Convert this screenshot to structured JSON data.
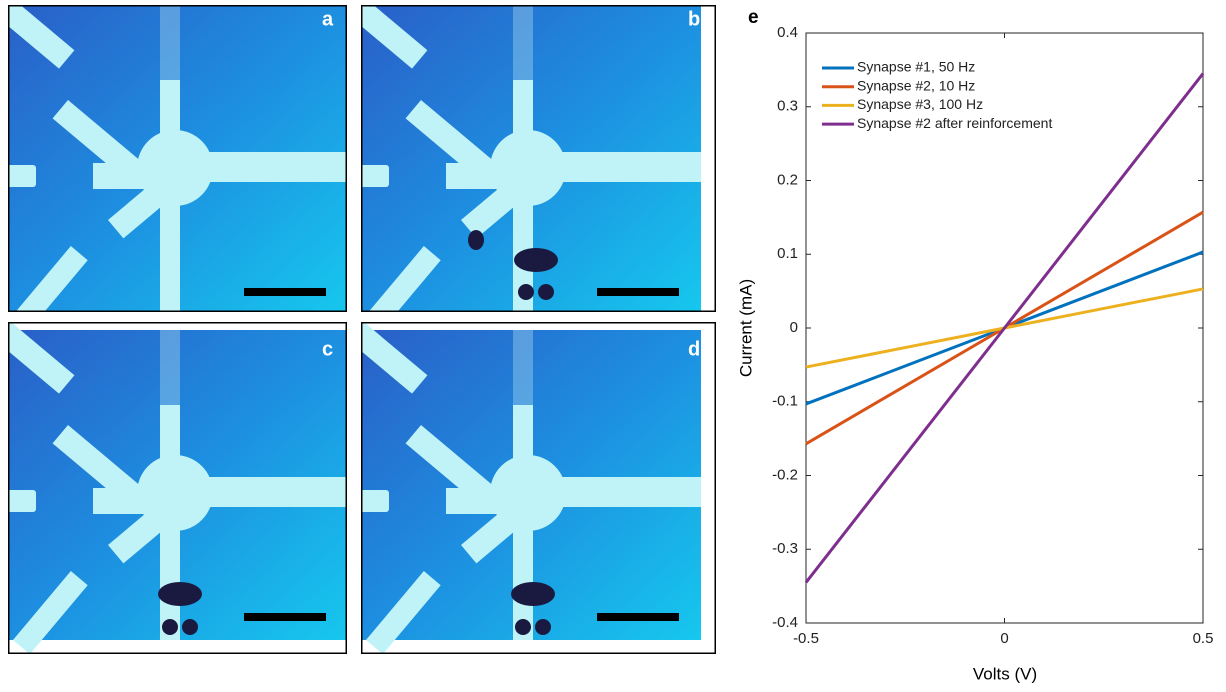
{
  "panels": {
    "labels": [
      "a",
      "b",
      "c",
      "d"
    ]
  },
  "chart_data": {
    "type": "line",
    "panel_label": "e",
    "x_label": "Volts (V)",
    "y_label": "Current (mA)",
    "x": [
      -0.5,
      0,
      0.5
    ],
    "series": [
      {
        "name": "Synapse #1, 50 Hz",
        "color": "#0072bd",
        "values": [
          -0.103,
          0,
          0.103
        ]
      },
      {
        "name": "Synapse #2, 10 Hz",
        "color": "#d95319",
        "values": [
          -0.157,
          0,
          0.157
        ]
      },
      {
        "name": "Synapse #3, 100 Hz",
        "color": "#edb120",
        "values": [
          -0.053,
          0,
          0.053
        ]
      },
      {
        "name": "Synapse #2 after reinforcement",
        "color": "#7e2f8e",
        "values": [
          -0.345,
          0,
          0.345
        ]
      }
    ],
    "xlim": [
      -0.5,
      0.5
    ],
    "xticks": [
      -0.5,
      0,
      0.5
    ],
    "ylim": [
      -0.4,
      0.4
    ],
    "yticks": [
      -0.4,
      -0.3,
      -0.2,
      -0.1,
      0,
      0.1,
      0.2,
      0.3,
      0.4
    ],
    "legend": "upper-left"
  }
}
